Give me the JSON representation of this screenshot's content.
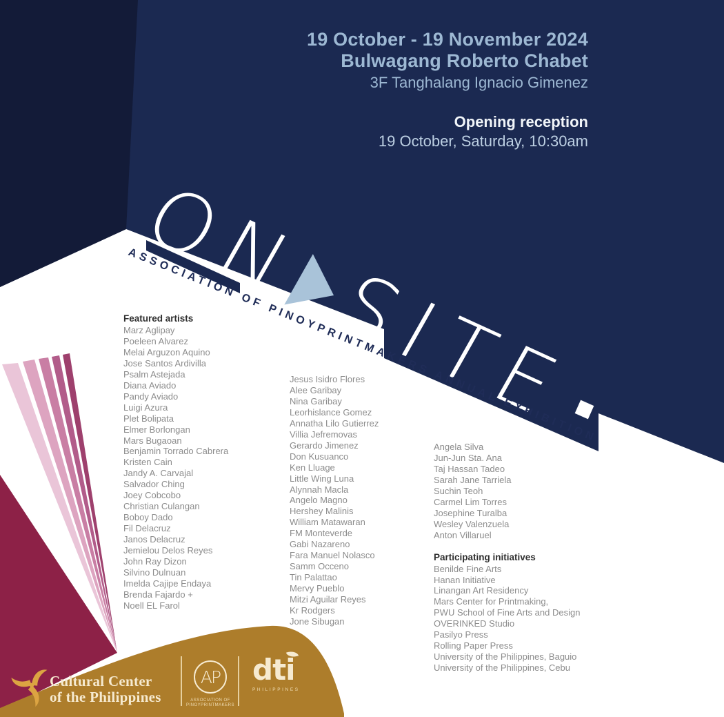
{
  "event": {
    "dates": "19 October - 19 November 2024",
    "venue": "Bulwagang Roberto Chabet",
    "venue_floor": "3F Tanghalang Ignacio Gimenez",
    "reception_label": "Opening reception",
    "reception_datetime": "19 October, Saturday, 10:30am"
  },
  "wordmark": {
    "part1": "ON",
    "part2": "SITE",
    "tagline": "ASSOCIATION OF PINOYPRINTMAKERS ANNUAL EXHIBITION"
  },
  "featured": {
    "title": "Featured artists",
    "column1": [
      "Marz Aglipay",
      "Poeleen Alvarez",
      "Melai Arguzon Aquino",
      "Jose Santos Ardivilla",
      "Psalm Astejada",
      "Diana Aviado",
      "Pandy Aviado",
      "Luigi Azura",
      "Plet Bolipata",
      "Elmer Borlongan",
      "Mars Bugaoan",
      "Benjamin Torrado Cabrera",
      "Kristen Cain",
      "Jandy A. Carvajal",
      "Salvador Ching",
      "Joey Cobcobo",
      "Christian Culangan",
      "Boboy Dado",
      "Fil Delacruz",
      "Janos Delacruz",
      "Jemielou Delos Reyes",
      "John Ray Dizon",
      "Silvino Dulnuan",
      "Imelda Cajipe Endaya",
      "Brenda Fajardo +",
      "Noell EL Farol"
    ],
    "column2": [
      "Jesus Isidro Flores",
      "Alee Garibay",
      "Nina Garibay",
      "Leorhislance Gomez",
      "Annatha Lilo Gutierrez",
      "Villia Jefremovas",
      "Gerardo Jimenez",
      "Don Kusuanco",
      "Ken Lluage",
      "Little Wing Luna",
      "Alynnah Macla",
      "Angelo Magno",
      "Hershey Malinis",
      "William Matawaran",
      "FM Monteverde",
      "Gabi Nazareno",
      "Fara Manuel Nolasco",
      "Samm Occeno",
      "Tin Palattao",
      "Mervy Pueblo",
      "Mitzi Aguilar Reyes",
      "Kr Rodgers",
      "Jone Sibugan"
    ],
    "column3": [
      "Angela Silva",
      "Jun-Jun Sta. Ana",
      "Taj Hassan Tadeo",
      "Sarah Jane Tarriela",
      "Suchin Teoh",
      "Carmel Lim Torres",
      "Josephine Turalba",
      "Wesley Valenzuela",
      "Anton Villaruel"
    ]
  },
  "initiatives": {
    "title": "Participating initiatives",
    "items": [
      "Benilde Fine Arts",
      "Hanan Initiative",
      "Linangan Art Residency",
      "Mars Center for Printmaking,",
      "PWU School of Fine Arts and Design",
      "OVERINKED Studio",
      "Pasilyo Press",
      "Rolling Paper Press",
      "University of the Philippines, Baguio",
      "University of the Philippines, Cebu"
    ]
  },
  "footer": {
    "ccp_name_line1": "Cultural Center",
    "ccp_name_line2": "of the Philippines",
    "ap_monogram": "AP",
    "ap_name_line1": "ASSOCIATION OF",
    "ap_name_line2": "PINOYPRINTMAKERS",
    "dti_label": "dti",
    "dti_sub": "PHILIPPINES"
  },
  "colors": {
    "navy_wall": "#1b2951",
    "navy_wall_dark": "#131b38",
    "accent_light_blue": "#a9c3d9",
    "header_blue": "#9db8d3",
    "gold": "#ad7d2b",
    "burgundy": "#8d2147",
    "cream": "#f6ead0",
    "list_gray": "#8c8c8c"
  }
}
